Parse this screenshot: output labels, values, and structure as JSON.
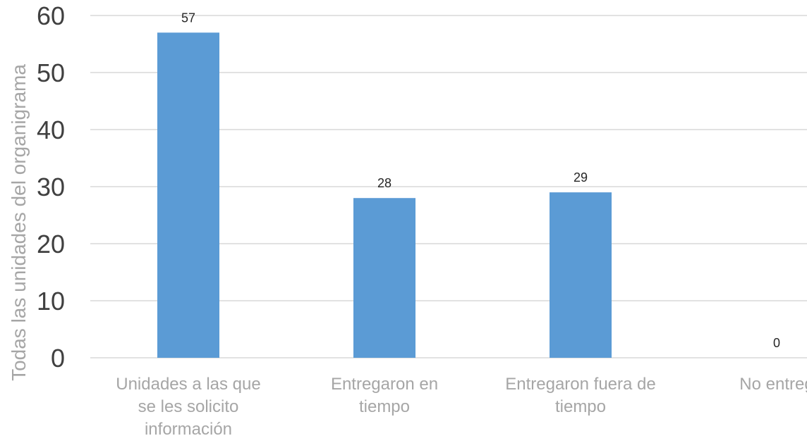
{
  "chart_data": {
    "type": "bar",
    "ylabel": "Todas las unidades del organigrama",
    "xlabel": "",
    "ylim": [
      0,
      60
    ],
    "yticks": [
      0,
      10,
      20,
      30,
      40,
      50,
      60
    ],
    "grid": true,
    "categories": [
      [
        "Unidades a las que",
        "se les solicito",
        "información"
      ],
      [
        "Entregaron en",
        "tiempo"
      ],
      [
        "Entregaron fuera de",
        "tiempo"
      ],
      [
        "No entreg"
      ]
    ],
    "values": [
      57,
      28,
      29,
      0
    ],
    "data_labels": [
      "57",
      "28",
      "29",
      "0"
    ]
  },
  "colors": {
    "bar": "#5B9BD5",
    "grid": "#D9D9D9",
    "tick_label": "#404040",
    "category_label": "#A6A6A6",
    "axis_title": "#A6A6A6",
    "data_label": "#262626"
  }
}
